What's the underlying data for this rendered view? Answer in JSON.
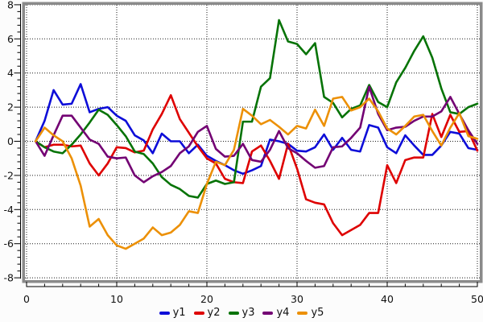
{
  "chart_data": {
    "type": "line",
    "title": "",
    "xlabel": "",
    "ylabel": "",
    "xlim": [
      -0.3,
      50.5
    ],
    "ylim": [
      -8.35,
      8.2
    ],
    "x_start": 1,
    "x_step": 1,
    "grid": true,
    "legend_position": "bottom",
    "x_tick_labels": [
      "0",
      "10",
      "20",
      "30",
      "40",
      "50"
    ],
    "x_ticks_major": [
      0,
      10,
      20,
      30,
      40,
      50
    ],
    "x_tick_minor_step": 2,
    "y_tick_labels": [
      "-8",
      "-6",
      "-4",
      "-2",
      "0",
      "2",
      "4",
      "6",
      "8"
    ],
    "y_ticks_major": [
      -8,
      -6,
      -4,
      -2,
      0,
      2,
      4,
      6,
      8
    ],
    "y_tick_minor_step": 0.4,
    "colors": {
      "background": "#fcfcfc",
      "plot_background": "#ffffff",
      "frame": "#8a8a8a",
      "grid": "#1a1a1a",
      "axis": "#000000",
      "text": "#111111"
    },
    "series": [
      {
        "name": "y1",
        "color": "#0d0dd8",
        "values": [
          0,
          1.2,
          3.0,
          2.15,
          2.2,
          3.35,
          1.7,
          1.9,
          2.0,
          1.5,
          1.2,
          0.35,
          0.05,
          -0.7,
          0.45,
          0.0,
          0.0,
          -0.7,
          -0.2,
          -0.85,
          -1.15,
          -1.4,
          -1.7,
          -1.9,
          -1.7,
          -1.45,
          0.1,
          0.0,
          -0.15,
          -0.55,
          -0.6,
          -0.35,
          0.4,
          -0.5,
          0.2,
          -0.5,
          -0.6,
          0.95,
          0.8,
          -0.35,
          -0.7,
          0.35,
          -0.25,
          -0.8,
          -0.8,
          -0.25,
          0.55,
          0.45,
          -0.4,
          -0.5
        ]
      },
      {
        "name": "y2",
        "color": "#de0000",
        "values": [
          0,
          -0.35,
          -0.2,
          -0.2,
          -0.3,
          -0.25,
          -1.3,
          -2.0,
          -1.3,
          -0.35,
          -0.4,
          -0.65,
          -0.55,
          0.7,
          1.6,
          2.7,
          1.3,
          0.5,
          -0.3,
          -1.0,
          -1.3,
          -2.2,
          -2.4,
          -2.45,
          -0.6,
          -0.25,
          -1.15,
          -2.2,
          -0.15,
          -1.6,
          -3.4,
          -3.6,
          -3.7,
          -4.8,
          -5.5,
          -5.2,
          -4.9,
          -4.2,
          -4.2,
          -1.4,
          -2.45,
          -1.1,
          -0.95,
          -0.95,
          1.6,
          0.25,
          1.55,
          0.55,
          0.6,
          -0.55
        ]
      },
      {
        "name": "y3",
        "color": "#067306",
        "values": [
          0,
          -0.35,
          -0.6,
          -0.7,
          -0.2,
          0.4,
          1.1,
          1.85,
          1.55,
          0.95,
          0.3,
          -0.6,
          -0.75,
          -1.3,
          -2.1,
          -2.55,
          -2.8,
          -3.2,
          -3.3,
          -2.5,
          -2.3,
          -2.5,
          -2.4,
          1.15,
          1.15,
          3.2,
          3.7,
          7.1,
          5.85,
          5.7,
          5.1,
          5.75,
          2.6,
          2.25,
          1.4,
          1.9,
          2.1,
          3.3,
          2.3,
          2.0,
          3.45,
          4.3,
          5.3,
          6.15,
          4.9,
          3.1,
          1.7,
          1.6,
          2.0,
          2.2
        ]
      },
      {
        "name": "y4",
        "color": "#730073",
        "values": [
          0,
          -0.85,
          0.35,
          1.5,
          1.5,
          0.8,
          0.1,
          -0.15,
          -0.9,
          -1.0,
          -0.95,
          -2.0,
          -2.4,
          -2.05,
          -1.8,
          -1.45,
          -0.7,
          -0.3,
          0.55,
          0.9,
          -0.45,
          -0.9,
          -0.85,
          -0.15,
          -1.1,
          -1.2,
          -0.5,
          0.6,
          -0.4,
          -0.7,
          -1.15,
          -1.55,
          -1.45,
          -0.35,
          -0.3,
          0.2,
          0.8,
          3.2,
          1.6,
          0.65,
          0.8,
          0.85,
          1.2,
          1.45,
          1.45,
          1.75,
          2.6,
          1.6,
          0.65,
          -0.15
        ]
      },
      {
        "name": "y5",
        "color": "#ec9006",
        "values": [
          0,
          0.8,
          0.35,
          0.0,
          -1.0,
          -2.6,
          -5.0,
          -4.55,
          -5.5,
          -6.1,
          -6.3,
          -6.0,
          -5.7,
          -5.05,
          -5.5,
          -5.35,
          -4.9,
          -4.1,
          -4.2,
          -2.5,
          -1.2,
          -1.4,
          -0.5,
          1.9,
          1.5,
          1.0,
          1.25,
          0.85,
          0.4,
          0.9,
          0.75,
          1.85,
          0.9,
          2.5,
          2.6,
          1.8,
          2.0,
          2.5,
          1.75,
          0.75,
          0.4,
          0.9,
          1.45,
          1.55,
          0.6,
          -0.25,
          0.8,
          1.65,
          0.3,
          0.15
        ]
      }
    ]
  }
}
